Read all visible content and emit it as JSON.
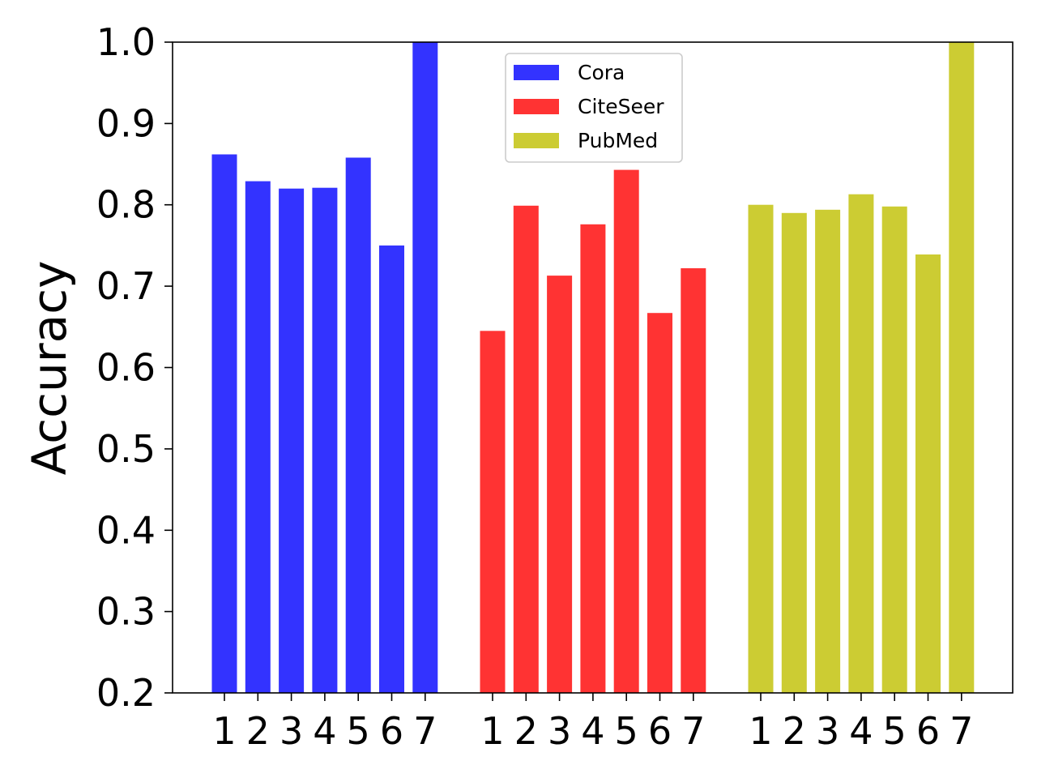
{
  "chart_data": {
    "type": "bar",
    "ylabel": "Accuracy",
    "xlabel": "",
    "ylim": [
      0.2,
      1.0
    ],
    "yticks": [
      "0.2",
      "0.3",
      "0.4",
      "0.5",
      "0.6",
      "0.7",
      "0.8",
      "0.9",
      "1.0"
    ],
    "categories": [
      "1",
      "2",
      "3",
      "4",
      "5",
      "6",
      "7"
    ],
    "legend_position": "top-center",
    "series": [
      {
        "name": "Cora",
        "color": "#3333ff",
        "values": [
          0.862,
          0.829,
          0.82,
          0.821,
          0.858,
          0.75,
          1.0
        ]
      },
      {
        "name": "CiteSeer",
        "color": "#ff3333",
        "values": [
          0.645,
          0.799,
          0.713,
          0.776,
          0.843,
          0.667,
          0.722
        ]
      },
      {
        "name": "PubMed",
        "color": "#cccc33",
        "values": [
          0.8,
          0.79,
          0.794,
          0.813,
          0.798,
          0.739,
          1.0
        ]
      }
    ]
  }
}
